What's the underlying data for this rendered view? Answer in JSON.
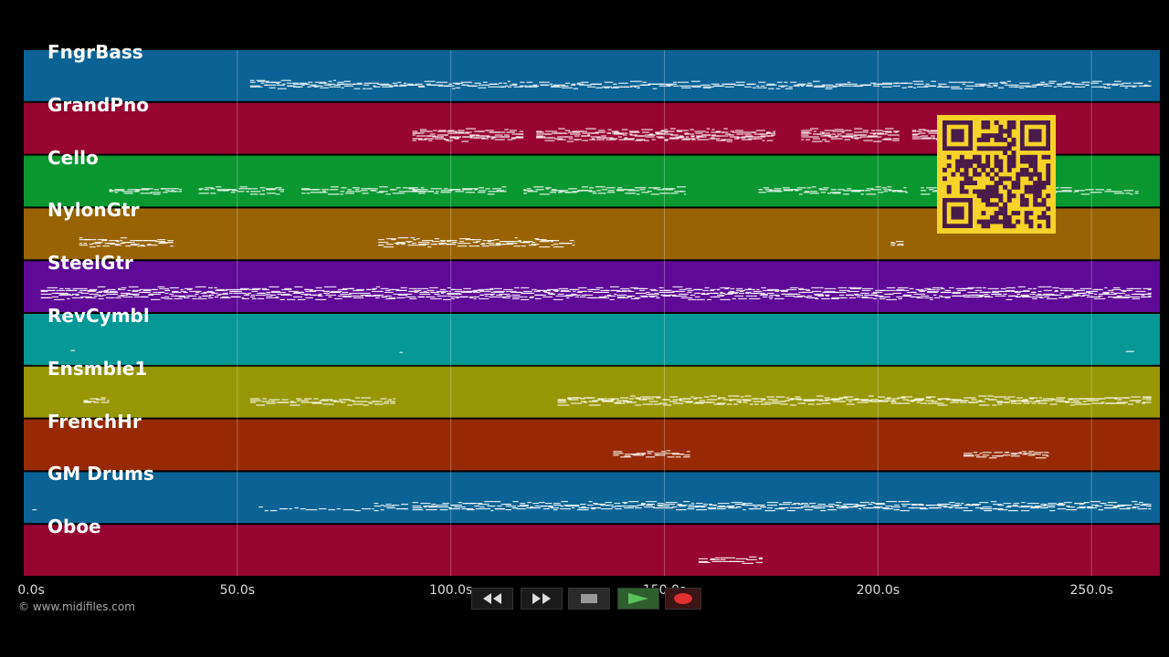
{
  "tracks": [
    {
      "name": "FngrBass",
      "color": "#0a6394",
      "notes": [
        [
          53,
          75,
          4
        ],
        [
          75,
          101,
          3
        ],
        [
          101,
          152,
          3
        ],
        [
          152,
          201,
          3
        ],
        [
          201,
          264,
          3
        ]
      ]
    },
    {
      "name": "GrandPno",
      "color": "#970530",
      "notes": [
        [
          91,
          117,
          6
        ],
        [
          120,
          150,
          6
        ],
        [
          150,
          176,
          6
        ],
        [
          182,
          205,
          6
        ],
        [
          208,
          241,
          6
        ]
      ]
    },
    {
      "name": "Cello",
      "color": "#0a9730",
      "notes": [
        [
          20,
          37,
          3
        ],
        [
          41,
          61,
          3
        ],
        [
          65,
          94,
          3
        ],
        [
          91,
          113,
          3
        ],
        [
          117,
          155,
          3
        ],
        [
          172,
          207,
          3
        ],
        [
          210,
          246,
          3
        ],
        [
          246,
          261,
          2
        ]
      ]
    },
    {
      "name": "NylonGtr",
      "color": "#976305",
      "notes": [
        [
          13,
          25,
          4
        ],
        [
          25,
          35,
          4
        ],
        [
          83,
          99,
          4
        ],
        [
          99,
          124,
          4
        ],
        [
          124,
          129,
          3
        ],
        [
          203,
          206,
          3
        ]
      ]
    },
    {
      "name": "SteelGtr",
      "color": "#5e0a97",
      "notes": [
        [
          4,
          33,
          6
        ],
        [
          33,
          100,
          6
        ],
        [
          100,
          163,
          6
        ],
        [
          163,
          264,
          6
        ]
      ]
    },
    {
      "name": "RevCymbl",
      "color": "#069797",
      "notes": [
        [
          11,
          12,
          1
        ],
        [
          88,
          89,
          1
        ],
        [
          258,
          260,
          1
        ]
      ]
    },
    {
      "name": "Ensmble1",
      "color": "#979705",
      "notes": [
        [
          14,
          20,
          3
        ],
        [
          53,
          87,
          3
        ],
        [
          125,
          200,
          4
        ],
        [
          200,
          248,
          4
        ],
        [
          248,
          264,
          4
        ]
      ]
    },
    {
      "name": "FrenchHr",
      "color": "#972a05",
      "notes": [
        [
          138,
          156,
          3
        ],
        [
          220,
          240,
          3
        ]
      ]
    },
    {
      "name": "GM Drums",
      "color": "#0a6394",
      "notes": [
        [
          2,
          3,
          1
        ],
        [
          55,
          82,
          1
        ],
        [
          82,
          90,
          3
        ],
        [
          91,
          124,
          4
        ],
        [
          124,
          264,
          4
        ]
      ]
    },
    {
      "name": "Oboe",
      "color": "#970530",
      "notes": [
        [
          158,
          173,
          3
        ]
      ]
    }
  ],
  "time_axis": {
    "max_seconds": 266,
    "ticks": [
      0,
      50,
      100,
      150,
      200,
      250
    ],
    "labels": [
      "0.0s",
      "50.0s",
      "100.0s",
      "150.0s",
      "200.0s",
      "250.0s"
    ]
  },
  "copyright": "© www.midifiles.com",
  "controls": {
    "rewind": "rewind-icon",
    "fast_forward": "fast-forward-icon",
    "stop": "stop-icon",
    "play": "play-icon",
    "record": "record-icon",
    "play_color": "#3a8f3a",
    "record_color": "#e03030"
  },
  "qr_colors": {
    "bg": "#f5d328",
    "fg": "#4a1a4a"
  }
}
